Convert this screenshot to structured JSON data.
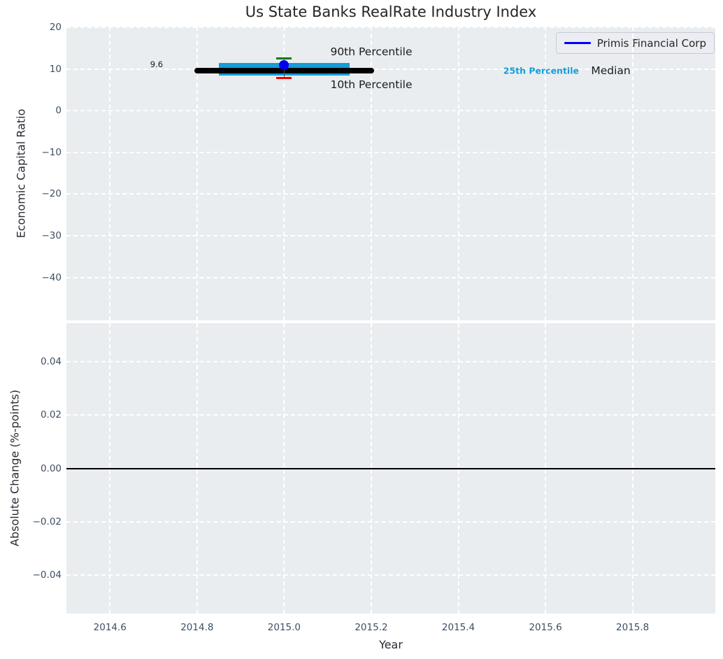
{
  "figure": {
    "background": "#ffffff",
    "plot_background": "#e9edf0",
    "grid_color": "#ffffff",
    "tick_color": "#3d4f63",
    "text_color": "#262626"
  },
  "legend": {
    "label": "Primis Financial Corp",
    "line_color": "#0000ff"
  },
  "chart_data": [
    {
      "type": "line",
      "title": "Us State Banks RealRate Industry Index",
      "ylabel": "Economic Capital Ratio",
      "xlabel": "",
      "xlim": [
        2014.5,
        2015.99
      ],
      "ylim": [
        -50.3,
        20.2
      ],
      "xticks": [
        2014.6,
        2014.8,
        2015.0,
        2015.2,
        2015.4,
        2015.6,
        2015.8
      ],
      "xtick_labels": [],
      "yticks": [
        20,
        10,
        0,
        -10,
        -20,
        -30,
        -40
      ],
      "ytick_labels": [
        "20",
        "10",
        "0",
        "−10",
        "−20",
        "−30",
        "−40"
      ],
      "grid": "white-dashed",
      "legend_position": "upper right",
      "series": [
        {
          "name": "Primis Financial Corp",
          "type": "point",
          "x": 2015.0,
          "y": 11.0,
          "color": "#0000ee"
        }
      ],
      "industry_stats": {
        "median": {
          "value": 9.6,
          "x_start": 2014.8,
          "x_end": 2015.2,
          "color": "#000000",
          "linewidth": 8
        },
        "iqr_band": {
          "p25": 8.4,
          "p75": 11.5,
          "x_start": 2014.85,
          "x_end": 2015.15,
          "color": "#169cd8"
        },
        "whisker": {
          "x": 2015.0,
          "p10": 7.8,
          "p90": 12.5,
          "cap90_color": "#008000",
          "cap10_color": "#ee0000",
          "line_color": "#4d4d4d"
        }
      },
      "annotations": [
        {
          "text": "90th Percentile",
          "x": 2015.2,
          "y": 14.2,
          "color": "#1a1a1a",
          "size": 15.5,
          "bold": false
        },
        {
          "text": "10th Percentile",
          "x": 2015.2,
          "y": 6.2,
          "color": "#1a1a1a",
          "size": 15.5,
          "bold": false
        },
        {
          "text": "25th Percentile",
          "x": 2015.59,
          "y": 9.7,
          "color": "#169cd8",
          "size": 12.5,
          "bold": true
        },
        {
          "text": "Median",
          "x": 2015.75,
          "y": 9.6,
          "color": "#1a1a1a",
          "size": 15.5,
          "bold": false
        },
        {
          "text": "9.6",
          "x": 2014.707,
          "y": 11.2,
          "color": "#1a1a1a",
          "size": 11.5,
          "bold": false
        }
      ]
    },
    {
      "type": "line",
      "title": "",
      "ylabel": "Absolute Change (%-points)",
      "xlabel": "Year",
      "xlim": [
        2014.5,
        2015.99
      ],
      "ylim": [
        -0.0545,
        0.0545
      ],
      "xticks": [
        2014.6,
        2014.8,
        2015.0,
        2015.2,
        2015.4,
        2015.6,
        2015.8
      ],
      "xtick_labels": [
        "2014.6",
        "2014.8",
        "2015.0",
        "2015.2",
        "2015.4",
        "2015.6",
        "2015.8"
      ],
      "yticks": [
        0.04,
        0.02,
        0.0,
        -0.02,
        -0.04
      ],
      "ytick_labels": [
        "0.04",
        "0.02",
        "0.00",
        "−0.02",
        "−0.04"
      ],
      "grid": "white-dashed",
      "zero_line": {
        "y": 0.0,
        "color": "#000000"
      }
    }
  ]
}
